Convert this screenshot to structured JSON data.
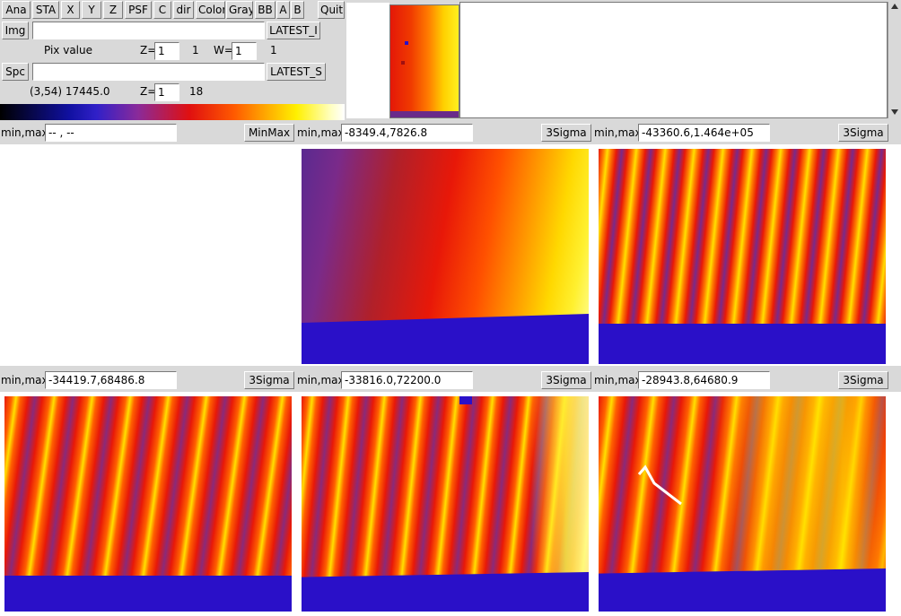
{
  "toolbar": {
    "buttons": [
      "Ana",
      "STA",
      "X",
      "Y",
      "Z",
      "PSF",
      "C",
      "dir",
      "Color",
      "Gray",
      "BB",
      "A",
      "B",
      "Quit"
    ]
  },
  "img_row": {
    "img_button": "Img",
    "img_value": "",
    "latest_button": "LATEST_I"
  },
  "pix_row": {
    "pix_label": "Pix value",
    "z_label": "Z=",
    "z_value": "1",
    "z_count": "1",
    "w_label": "W=",
    "w_value": "1",
    "w_count": "1"
  },
  "spc_row": {
    "spc_button": "Spc",
    "spc_value": "",
    "latest_button": "LATEST_S"
  },
  "coord_row": {
    "coord_text": "(3,54) 17445.0",
    "z_label": "Z=",
    "z_value": "1",
    "z_count": "18"
  },
  "panels": [
    {
      "label": "min,max:",
      "value": "-- , --",
      "button": "MinMax"
    },
    {
      "label": "min,max:",
      "value": "-8349.4,7826.8",
      "button": "3Sigma"
    },
    {
      "label": "min,max:",
      "value": "-43360.6,1.464e+05",
      "button": "3Sigma"
    },
    {
      "label": "min,max:",
      "value": "-34419.7,68486.8",
      "button": "3Sigma"
    },
    {
      "label": "min,max:",
      "value": "-33816.0,72200.0",
      "button": "3Sigma"
    },
    {
      "label": "min,max:",
      "value": "-28943.8,64680.9",
      "button": "3Sigma"
    }
  ],
  "colors": {
    "bg": "#d9d9d9",
    "dark_blue": "#2a10c8",
    "purple": "#6a2a8a",
    "red": "#e81808",
    "orange": "#ff6a00",
    "yellow": "#ffe800",
    "white": "#ffffff"
  }
}
